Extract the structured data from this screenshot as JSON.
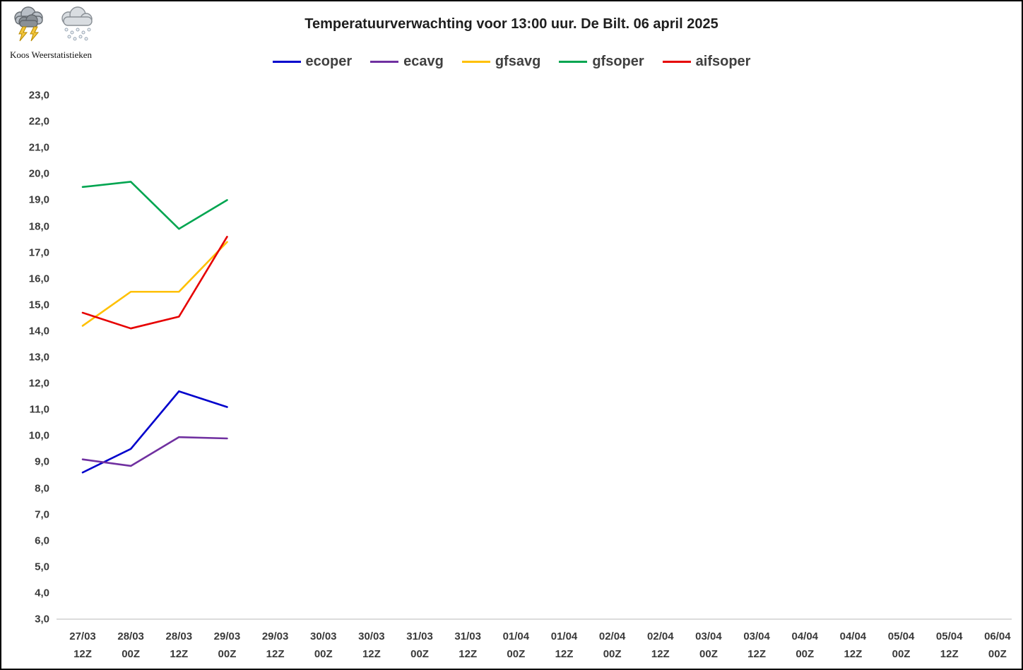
{
  "header": {
    "brand": "Koos Weerstatistieken",
    "icons": [
      {
        "name": "storm-cloud-icon"
      },
      {
        "name": "snow-cloud-icon"
      }
    ]
  },
  "chart_data": {
    "type": "line",
    "title": "Temperatuurverwachting voor 13:00 uur. De Bilt. 06 april 2025",
    "legend_position": "top-center",
    "grid": false,
    "ylim": [
      3.0,
      23.0
    ],
    "ytick_step": 1.0,
    "ytick_labels": [
      "23,0",
      "22,0",
      "21,0",
      "20,0",
      "19,0",
      "18,0",
      "17,0",
      "16,0",
      "15,0",
      "14,0",
      "13,0",
      "12,0",
      "11,0",
      "10,0",
      "9,0",
      "8,0",
      "7,0",
      "6,0",
      "5,0",
      "4,0",
      "3,0"
    ],
    "x_categories": [
      {
        "date": "27/03",
        "time": "12Z"
      },
      {
        "date": "28/03",
        "time": "00Z"
      },
      {
        "date": "28/03",
        "time": "12Z"
      },
      {
        "date": "29/03",
        "time": "00Z"
      },
      {
        "date": "29/03",
        "time": "12Z"
      },
      {
        "date": "30/03",
        "time": "00Z"
      },
      {
        "date": "30/03",
        "time": "12Z"
      },
      {
        "date": "31/03",
        "time": "00Z"
      },
      {
        "date": "31/03",
        "time": "12Z"
      },
      {
        "date": "01/04",
        "time": "00Z"
      },
      {
        "date": "01/04",
        "time": "12Z"
      },
      {
        "date": "02/04",
        "time": "00Z"
      },
      {
        "date": "02/04",
        "time": "12Z"
      },
      {
        "date": "03/04",
        "time": "00Z"
      },
      {
        "date": "03/04",
        "time": "12Z"
      },
      {
        "date": "04/04",
        "time": "00Z"
      },
      {
        "date": "04/04",
        "time": "12Z"
      },
      {
        "date": "05/04",
        "time": "00Z"
      },
      {
        "date": "05/04",
        "time": "12Z"
      },
      {
        "date": "06/04",
        "time": "00Z"
      }
    ],
    "series": [
      {
        "name": "ecoper",
        "color": "#0000cc",
        "values": [
          8.6,
          9.5,
          11.7,
          11.1
        ]
      },
      {
        "name": "ecavg",
        "color": "#7030a0",
        "values": [
          9.1,
          8.85,
          9.95,
          9.9
        ]
      },
      {
        "name": "gfsavg",
        "color": "#ffc000",
        "values": [
          14.2,
          15.5,
          15.5,
          17.4
        ]
      },
      {
        "name": "gfsoper",
        "color": "#00a550",
        "values": [
          19.5,
          19.7,
          17.9,
          19.0
        ]
      },
      {
        "name": "aifsoper",
        "color": "#e60000",
        "values": [
          14.7,
          14.1,
          14.55,
          17.6
        ]
      }
    ]
  }
}
